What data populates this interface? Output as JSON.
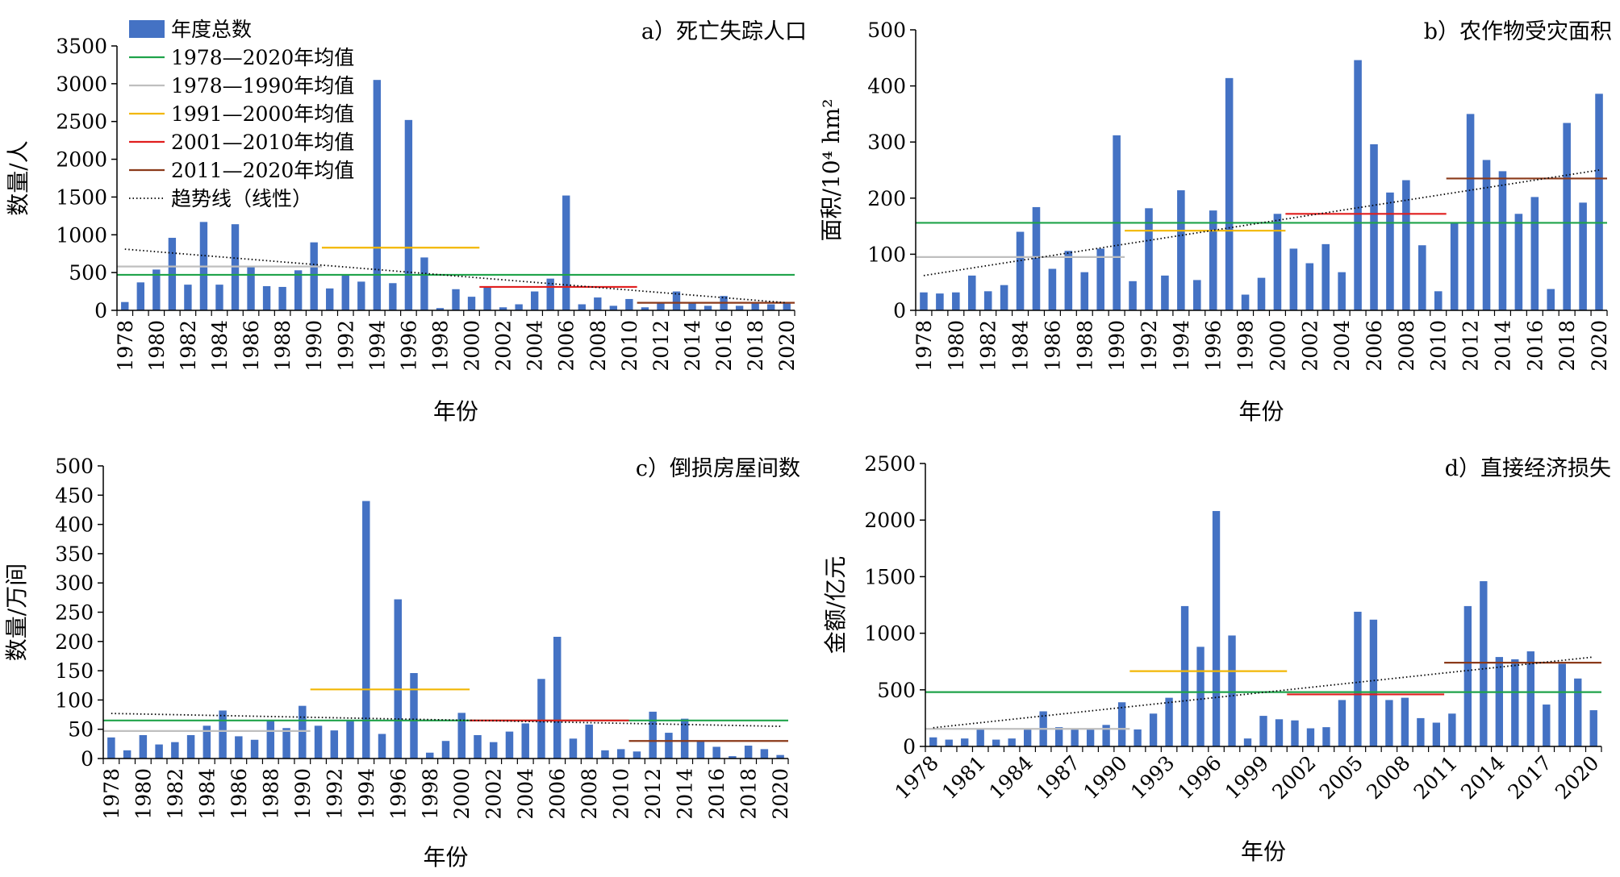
{
  "legend": {
    "items": [
      {
        "label": "年度总数",
        "kind": "bar",
        "color": "#4472C4"
      },
      {
        "label": "1978—2020年均值",
        "kind": "line",
        "color": "#1FA34A"
      },
      {
        "label": "1978—1990年均值",
        "kind": "line",
        "color": "#BFBFBF"
      },
      {
        "label": "1991—2000年均值",
        "kind": "line",
        "color": "#F2B705"
      },
      {
        "label": "2001—2010年均值",
        "kind": "line",
        "color": "#E01E1E"
      },
      {
        "label": "2011—2020年均值",
        "kind": "line",
        "color": "#8B3A1A"
      },
      {
        "label": "趋势线（线性）",
        "kind": "dotted",
        "color": "#000000"
      }
    ]
  },
  "chart_data": [
    {
      "type": "bar",
      "title": "a）死亡失踪人口",
      "xlabel": "年份",
      "ylabel": "数量/人",
      "ylim": [
        0,
        3500
      ],
      "yticks": [
        0,
        500,
        1000,
        1500,
        2000,
        2500,
        3000,
        3500
      ],
      "x": [
        1978,
        1979,
        1980,
        1981,
        1982,
        1983,
        1984,
        1985,
        1986,
        1987,
        1988,
        1989,
        1990,
        1991,
        1992,
        1993,
        1994,
        1995,
        1996,
        1997,
        1998,
        1999,
        2000,
        2001,
        2002,
        2003,
        2004,
        2005,
        2006,
        2007,
        2008,
        2009,
        2010,
        2011,
        2012,
        2013,
        2014,
        2015,
        2016,
        2017,
        2018,
        2019,
        2020
      ],
      "xtick_labels": [
        "1978",
        "1980",
        "1982",
        "1984",
        "1986",
        "1988",
        "1990",
        "1992",
        "1994",
        "1996",
        "1998",
        "2000",
        "2002",
        "2004",
        "2006",
        "2008",
        "2010",
        "2012",
        "2014",
        "2016",
        "2018",
        "2020"
      ],
      "xtick_rotation": -90,
      "values": [
        110,
        370,
        540,
        960,
        340,
        1170,
        340,
        1140,
        580,
        320,
        310,
        530,
        900,
        290,
        470,
        380,
        3050,
        360,
        2520,
        700,
        30,
        280,
        180,
        310,
        40,
        80,
        250,
        420,
        1520,
        80,
        170,
        60,
        150,
        40,
        100,
        250,
        110,
        60,
        190,
        60,
        90,
        80,
        90
      ],
      "means": [
        {
          "name": "1978—2020年均值",
          "from": 1978,
          "to": 2020,
          "value": 470
        },
        {
          "name": "1978—1990年均值",
          "from": 1978,
          "to": 1990,
          "value": 580
        },
        {
          "name": "1991—2000年均值",
          "from": 1991,
          "to": 2000,
          "value": 830
        },
        {
          "name": "2001—2010年均值",
          "from": 2001,
          "to": 2010,
          "value": 310
        },
        {
          "name": "2011—2020年均值",
          "from": 2011,
          "to": 2020,
          "value": 100
        }
      ],
      "trend": {
        "from": 1978,
        "to": 2020,
        "start": 810,
        "end": 100
      }
    },
    {
      "type": "bar",
      "title": "b）农作物受灾面积",
      "xlabel": "年份",
      "ylabel": "面积/10⁴ hm²",
      "ylim": [
        0,
        500
      ],
      "yticks": [
        0,
        100,
        200,
        300,
        400,
        500
      ],
      "x": [
        1978,
        1979,
        1980,
        1981,
        1982,
        1983,
        1984,
        1985,
        1986,
        1987,
        1988,
        1989,
        1990,
        1991,
        1992,
        1993,
        1994,
        1995,
        1996,
        1997,
        1998,
        1999,
        2000,
        2001,
        2002,
        2003,
        2004,
        2005,
        2006,
        2007,
        2008,
        2009,
        2010,
        2011,
        2012,
        2013,
        2014,
        2015,
        2016,
        2017,
        2018,
        2019,
        2020
      ],
      "xtick_labels": [
        "1978",
        "1980",
        "1982",
        "1984",
        "1986",
        "1988",
        "1990",
        "1992",
        "1994",
        "1996",
        "1998",
        "2000",
        "2002",
        "2004",
        "2006",
        "2008",
        "2010",
        "2012",
        "2014",
        "2016",
        "2018",
        "2020"
      ],
      "xtick_rotation": -90,
      "values": [
        32,
        30,
        32,
        62,
        34,
        45,
        140,
        184,
        74,
        106,
        68,
        110,
        312,
        52,
        182,
        62,
        214,
        54,
        178,
        414,
        28,
        58,
        172,
        110,
        84,
        118,
        68,
        446,
        296,
        210,
        232,
        116,
        34,
        156,
        350,
        268,
        248,
        172,
        202,
        38,
        334,
        192,
        386
      ],
      "means": [
        {
          "name": "1978—2020年均值",
          "from": 1978,
          "to": 2020,
          "value": 156
        },
        {
          "name": "1978—1990年均值",
          "from": 1978,
          "to": 1990,
          "value": 95
        },
        {
          "name": "1991—2000年均值",
          "from": 1991,
          "to": 2000,
          "value": 142
        },
        {
          "name": "2001—2010年均值",
          "from": 2001,
          "to": 2010,
          "value": 172
        },
        {
          "name": "2011—2020年均值",
          "from": 2011,
          "to": 2020,
          "value": 235
        }
      ],
      "trend": {
        "from": 1978,
        "to": 2020,
        "start": 62,
        "end": 250
      }
    },
    {
      "type": "bar",
      "title": "c）倒损房屋间数",
      "xlabel": "年份",
      "ylabel": "数量/万间",
      "ylim": [
        0,
        500
      ],
      "yticks": [
        0,
        50,
        100,
        150,
        200,
        250,
        300,
        350,
        400,
        450,
        500
      ],
      "x": [
        1978,
        1979,
        1980,
        1981,
        1982,
        1983,
        1984,
        1985,
        1986,
        1987,
        1988,
        1989,
        1990,
        1991,
        1992,
        1993,
        1994,
        1995,
        1996,
        1997,
        1998,
        1999,
        2000,
        2001,
        2002,
        2003,
        2004,
        2005,
        2006,
        2007,
        2008,
        2009,
        2010,
        2011,
        2012,
        2013,
        2014,
        2015,
        2016,
        2017,
        2018,
        2019,
        2020
      ],
      "xtick_labels": [
        "1978",
        "1980",
        "1982",
        "1984",
        "1986",
        "1988",
        "1990",
        "1992",
        "1994",
        "1996",
        "1998",
        "2000",
        "2002",
        "2004",
        "2006",
        "2008",
        "2010",
        "2012",
        "2014",
        "2016",
        "2018",
        "2020"
      ],
      "xtick_rotation": -90,
      "values": [
        36,
        14,
        40,
        24,
        28,
        40,
        56,
        82,
        38,
        32,
        64,
        52,
        90,
        56,
        48,
        64,
        440,
        42,
        272,
        146,
        10,
        30,
        78,
        40,
        28,
        46,
        60,
        136,
        208,
        34,
        58,
        14,
        16,
        12,
        80,
        44,
        68,
        30,
        20,
        4,
        22,
        16,
        6
      ],
      "means": [
        {
          "name": "1978—2020年均值",
          "from": 1978,
          "to": 2020,
          "value": 65
        },
        {
          "name": "1978—1990年均值",
          "from": 1978,
          "to": 1990,
          "value": 47
        },
        {
          "name": "1991—2000年均值",
          "from": 1991,
          "to": 2000,
          "value": 118
        },
        {
          "name": "2001—2010年均值",
          "from": 2001,
          "to": 2010,
          "value": 65
        },
        {
          "name": "2011—2020年均值",
          "from": 2011,
          "to": 2020,
          "value": 30
        }
      ],
      "trend": {
        "from": 1978,
        "to": 2020,
        "start": 77,
        "end": 55
      }
    },
    {
      "type": "bar",
      "title": "d）直接经济损失",
      "xlabel": "年份",
      "ylabel": "金额/亿元",
      "ylim": [
        0,
        2500
      ],
      "yticks": [
        0,
        500,
        1000,
        1500,
        2000,
        2500
      ],
      "x": [
        1978,
        1979,
        1980,
        1981,
        1982,
        1983,
        1984,
        1985,
        1986,
        1987,
        1988,
        1989,
        1990,
        1991,
        1992,
        1993,
        1994,
        1995,
        1996,
        1997,
        1998,
        1999,
        2000,
        2001,
        2002,
        2003,
        2004,
        2005,
        2006,
        2007,
        2008,
        2009,
        2010,
        2011,
        2012,
        2013,
        2014,
        2015,
        2016,
        2017,
        2018,
        2019,
        2020
      ],
      "xtick_labels": [
        "1978",
        "1981",
        "1984",
        "1987",
        "1990",
        "1993",
        "1996",
        "1999",
        "2002",
        "2005",
        "2008",
        "2011",
        "2014",
        "2017",
        "2020"
      ],
      "xtick_rotation": -45,
      "values": [
        80,
        60,
        70,
        150,
        60,
        70,
        160,
        310,
        170,
        160,
        150,
        190,
        390,
        150,
        290,
        430,
        1240,
        880,
        2080,
        980,
        70,
        270,
        240,
        230,
        160,
        170,
        410,
        1190,
        1120,
        410,
        430,
        250,
        210,
        290,
        1240,
        1460,
        790,
        770,
        840,
        370,
        730,
        600,
        320
      ],
      "means": [
        {
          "name": "1978—2020年均值",
          "from": 1978,
          "to": 2020,
          "value": 480
        },
        {
          "name": "1978—1990年均值",
          "from": 1978,
          "to": 1990,
          "value": 155
        },
        {
          "name": "1991—2000年均值",
          "from": 1991,
          "to": 2000,
          "value": 665
        },
        {
          "name": "2001—2010年均值",
          "from": 2001,
          "to": 2010,
          "value": 460
        },
        {
          "name": "2011—2020年均值",
          "from": 2011,
          "to": 2020,
          "value": 740
        }
      ],
      "trend": {
        "from": 1978,
        "to": 2020,
        "start": 165,
        "end": 790
      }
    }
  ]
}
